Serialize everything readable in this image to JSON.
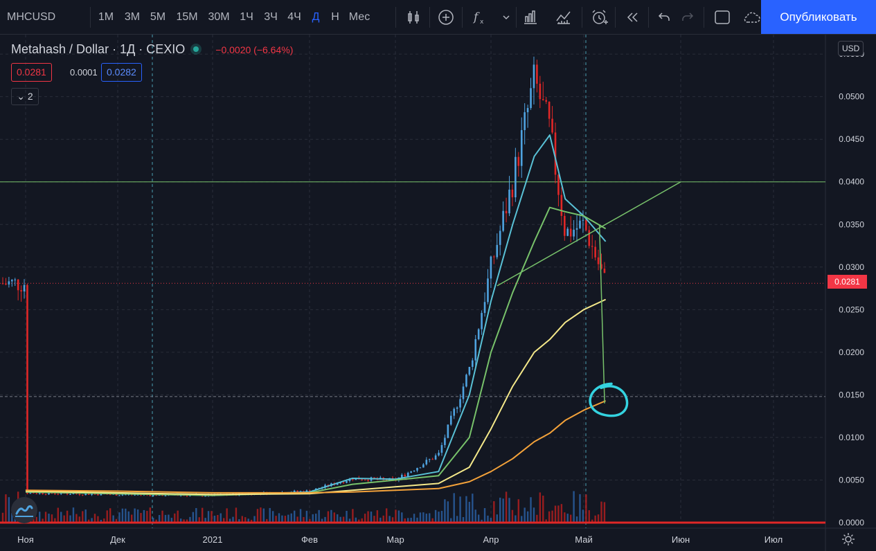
{
  "toolbar": {
    "symbol": "MHCUSD",
    "intervals": [
      "1М",
      "3М",
      "5М",
      "15М",
      "30М",
      "1Ч",
      "3Ч",
      "4Ч",
      "Д",
      "Н",
      "Мес"
    ],
    "active_interval": "Д",
    "publish_label": "Опубликовать",
    "icons": [
      "bar-style-icon",
      "add-compare-icon",
      "indicators-icon",
      "chevron-down-icon",
      "templates-icon",
      "replay-icon",
      "alert-icon",
      "rewind-icon",
      "undo-icon",
      "redo-icon",
      "layout-icon",
      "cloud-icon"
    ]
  },
  "legend": {
    "title": "Metahash / Dollar · 1Д · CEXIO",
    "change": "−0.0020 (−6.64%)",
    "bid": "0.0281",
    "spread": "0.0001",
    "ask": "0.0282",
    "collapsed_count": "2"
  },
  "axis": {
    "currency_badge": "USD",
    "last_price_tag": "0.0281"
  },
  "colors": {
    "background": "#131722",
    "up": "#4fa3e0",
    "down": "#e02727",
    "ma_cyan": "#59c1d6",
    "ma_green": "#78c26b",
    "ma_yellow": "#f5e98a",
    "ma_orange": "#f4a23a",
    "price_line": "#f23645",
    "accent": "#2962ff"
  },
  "chart_data": {
    "type": "line",
    "title": "Metahash / Dollar",
    "ylabel": "",
    "xlabel": "",
    "y_scale": "linear",
    "ylim": [
      0.0,
      0.0555
    ],
    "y_ticks": [
      "0.0550",
      "0.0500",
      "0.0450",
      "0.0400",
      "0.0350",
      "0.0300",
      "0.0250",
      "0.0200",
      "0.0150",
      "0.0100",
      "0.0050",
      "0.0000"
    ],
    "x_ticks": [
      "Ноя",
      "Дек",
      "2021",
      "Фев",
      "Мар",
      "Апр",
      "Май",
      "Июн",
      "Июл"
    ],
    "grid": true,
    "last_price": 0.0281,
    "horizontal_levels": [
      0.04,
      0.0148
    ],
    "price_series": [
      {
        "month": "Ноя",
        "day": 1,
        "close": 0.0035
      },
      {
        "month": "Дек",
        "day": 1,
        "close": 0.0033
      },
      {
        "month": "2021",
        "day": 1,
        "close": 0.0032
      },
      {
        "month": "Фев",
        "day": 1,
        "close": 0.0037
      },
      {
        "month": "Фев",
        "day": 15,
        "close": 0.0052
      },
      {
        "month": "Мар",
        "day": 1,
        "close": 0.005
      },
      {
        "month": "Мар",
        "day": 15,
        "close": 0.008
      },
      {
        "month": "Мар",
        "day": 25,
        "close": 0.018
      },
      {
        "month": "Апр",
        "day": 1,
        "close": 0.03
      },
      {
        "month": "Апр",
        "day": 8,
        "close": 0.04
      },
      {
        "month": "Апр",
        "day": 15,
        "close": 0.052
      },
      {
        "month": "Апр",
        "day": 20,
        "close": 0.046
      },
      {
        "month": "Апр",
        "day": 25,
        "close": 0.034
      },
      {
        "month": "Май",
        "day": 1,
        "close": 0.035
      },
      {
        "month": "Май",
        "day": 8,
        "close": 0.0281
      }
    ],
    "series": [
      {
        "color": "#59c1d6",
        "values": [
          0.0036,
          0.0034,
          0.0032,
          0.0036,
          0.0052,
          0.0051,
          0.006,
          0.015,
          0.026,
          0.035,
          0.043,
          0.0455,
          0.038,
          0.036,
          0.033
        ]
      },
      {
        "color": "#78c26b",
        "values": [
          0.0036,
          0.0034,
          0.0032,
          0.0035,
          0.0045,
          0.005,
          0.0055,
          0.01,
          0.02,
          0.027,
          0.033,
          0.037,
          0.0365,
          0.036,
          0.0345
        ]
      },
      {
        "color": "#f5e98a",
        "values": [
          0.0037,
          0.0035,
          0.0033,
          0.0034,
          0.0038,
          0.0042,
          0.0046,
          0.0065,
          0.011,
          0.016,
          0.02,
          0.0215,
          0.0235,
          0.025,
          0.0262
        ]
      },
      {
        "color": "#f4a23a",
        "values": [
          0.0038,
          0.0037,
          0.0035,
          0.0035,
          0.0036,
          0.0038,
          0.004,
          0.0048,
          0.006,
          0.0075,
          0.0095,
          0.0105,
          0.012,
          0.0132,
          0.0143
        ]
      }
    ]
  }
}
